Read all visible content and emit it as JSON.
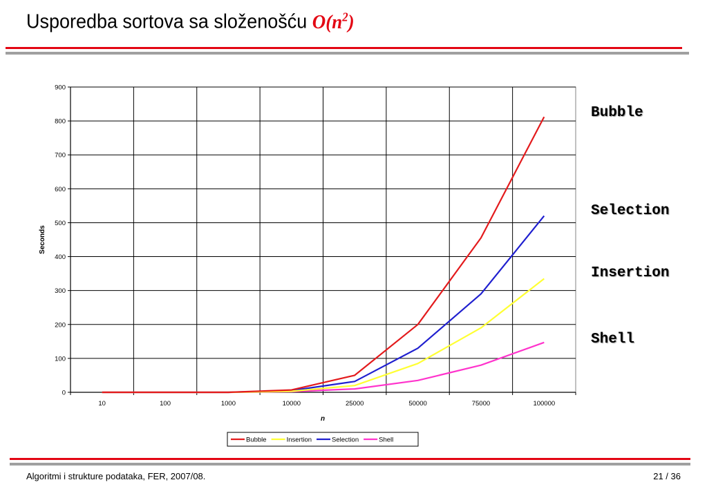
{
  "slide": {
    "title_text": "Usporedba sortova sa složenošću",
    "title_formula_base": "O(n",
    "title_formula_exp": "2",
    "title_formula_close": ")",
    "footer_left": "Algoritmi i strukture podataka, FER, 2007/08.",
    "footer_right": "21 / 36"
  },
  "side_labels": [
    "Bubble",
    "Selection",
    "Insertion",
    "Shell"
  ],
  "colors": {
    "accent": "#e30613",
    "rule_gray": "#a0a0a0"
  },
  "chart_data": {
    "type": "line",
    "xlabel": "n",
    "ylabel": "Seconds",
    "categories": [
      "10",
      "100",
      "1000",
      "10000",
      "25000",
      "50000",
      "75000",
      "100000"
    ],
    "ylim": [
      0,
      900
    ],
    "yticks": [
      0,
      100,
      200,
      300,
      400,
      500,
      600,
      700,
      800,
      900
    ],
    "grid": true,
    "legend_position": "bottom",
    "series": [
      {
        "name": "Bubble",
        "color": "#e31a1c",
        "values": [
          0,
          0,
          0,
          7,
          50,
          200,
          455,
          812
        ]
      },
      {
        "name": "Insertion",
        "color": "#ffff33",
        "values": [
          0,
          0,
          0,
          3,
          20,
          85,
          190,
          335
        ]
      },
      {
        "name": "Selection",
        "color": "#1f1fcf",
        "values": [
          0,
          0,
          0,
          5,
          32,
          130,
          290,
          520
        ]
      },
      {
        "name": "Shell",
        "color": "#ff33cc",
        "values": [
          0,
          0,
          0,
          2,
          10,
          35,
          80,
          147
        ]
      }
    ]
  }
}
